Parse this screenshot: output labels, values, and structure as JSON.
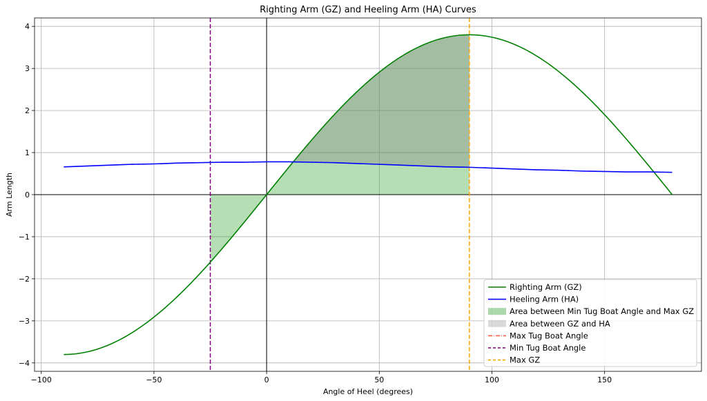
{
  "chart_data": {
    "type": "line",
    "title": "Righting Arm (GZ) and Heeling Arm (HA) Curves",
    "xlabel": "Angle of Heel (degrees)",
    "ylabel": "Arm Length",
    "xlim": [
      -103,
      193
    ],
    "ylim": [
      -4.2,
      4.2
    ],
    "xticks": [
      -100,
      -50,
      0,
      50,
      100,
      150
    ],
    "yticks": [
      -4,
      -3,
      -2,
      -1,
      0,
      1,
      2,
      3,
      4
    ],
    "grid": true,
    "legend_position": "lower-right",
    "series": [
      {
        "name": "Righting Arm (GZ)",
        "color": "#008000",
        "x": [
          -90,
          -80,
          -70,
          -60,
          -50,
          -40,
          -30,
          -20,
          -10,
          0,
          10,
          20,
          30,
          40,
          50,
          60,
          70,
          80,
          90,
          100,
          110,
          120,
          130,
          140,
          150,
          160,
          170,
          180
        ],
        "y": [
          -3.8,
          -3.74,
          -3.57,
          -3.29,
          -2.91,
          -2.44,
          -1.9,
          -1.3,
          -0.66,
          0.0,
          0.66,
          1.3,
          1.9,
          2.44,
          2.91,
          3.29,
          3.57,
          3.74,
          3.8,
          3.74,
          3.57,
          3.29,
          2.91,
          2.44,
          1.9,
          1.3,
          0.66,
          0.0
        ]
      },
      {
        "name": "Heeling Arm (HA)",
        "color": "#0000ff",
        "x": [
          -90,
          -80,
          -70,
          -60,
          -50,
          -40,
          -30,
          -20,
          -10,
          0,
          10,
          20,
          30,
          40,
          50,
          60,
          70,
          80,
          90,
          100,
          110,
          120,
          130,
          140,
          150,
          160,
          170,
          180
        ],
        "y": [
          0.66,
          0.68,
          0.7,
          0.72,
          0.73,
          0.75,
          0.76,
          0.77,
          0.77,
          0.78,
          0.78,
          0.77,
          0.76,
          0.74,
          0.72,
          0.7,
          0.68,
          0.66,
          0.65,
          0.63,
          0.61,
          0.59,
          0.58,
          0.56,
          0.55,
          0.54,
          0.54,
          0.53
        ]
      }
    ],
    "fills": [
      {
        "name": "Area between Min Tug Boat Angle and Max GZ",
        "color": "#2ca02c",
        "opacity": 0.35,
        "between": [
          "GZ",
          0
        ],
        "x_range": [
          -25,
          90
        ]
      },
      {
        "name": "Area between GZ and HA",
        "color": "#808080",
        "opacity": 0.35,
        "between": [
          "GZ",
          "HA"
        ],
        "x_range": [
          12,
          90
        ]
      }
    ],
    "vlines": [
      {
        "name": "Max Tug Boat Angle",
        "x": -25,
        "color": "#ff6347",
        "style": "dashdot",
        "visible": false
      },
      {
        "name": "Min Tug Boat Angle",
        "x": -25,
        "color": "#800080",
        "style": "dashed"
      },
      {
        "name": "Max GZ",
        "x": 90,
        "color": "#ffa500",
        "style": "dashed"
      }
    ],
    "legend": [
      {
        "label": "Righting Arm (GZ)",
        "kind": "line",
        "color": "#008000",
        "dash": ""
      },
      {
        "label": "Heeling Arm (HA)",
        "kind": "line",
        "color": "#0000ff",
        "dash": ""
      },
      {
        "label": "Area between Min Tug Boat Angle and Max GZ",
        "kind": "patch",
        "color": "#2ca02c",
        "opacity": 0.4
      },
      {
        "label": "Area between GZ and HA",
        "kind": "patch",
        "color": "#808080",
        "opacity": 0.3
      },
      {
        "label": "Max Tug Boat Angle",
        "kind": "line",
        "color": "#ff6347",
        "dash": "6,2,1,2"
      },
      {
        "label": "Min Tug Boat Angle",
        "kind": "line",
        "color": "#800080",
        "dash": "4,3"
      },
      {
        "label": "Max GZ",
        "kind": "line",
        "color": "#ffa500",
        "dash": "4,3"
      }
    ]
  }
}
